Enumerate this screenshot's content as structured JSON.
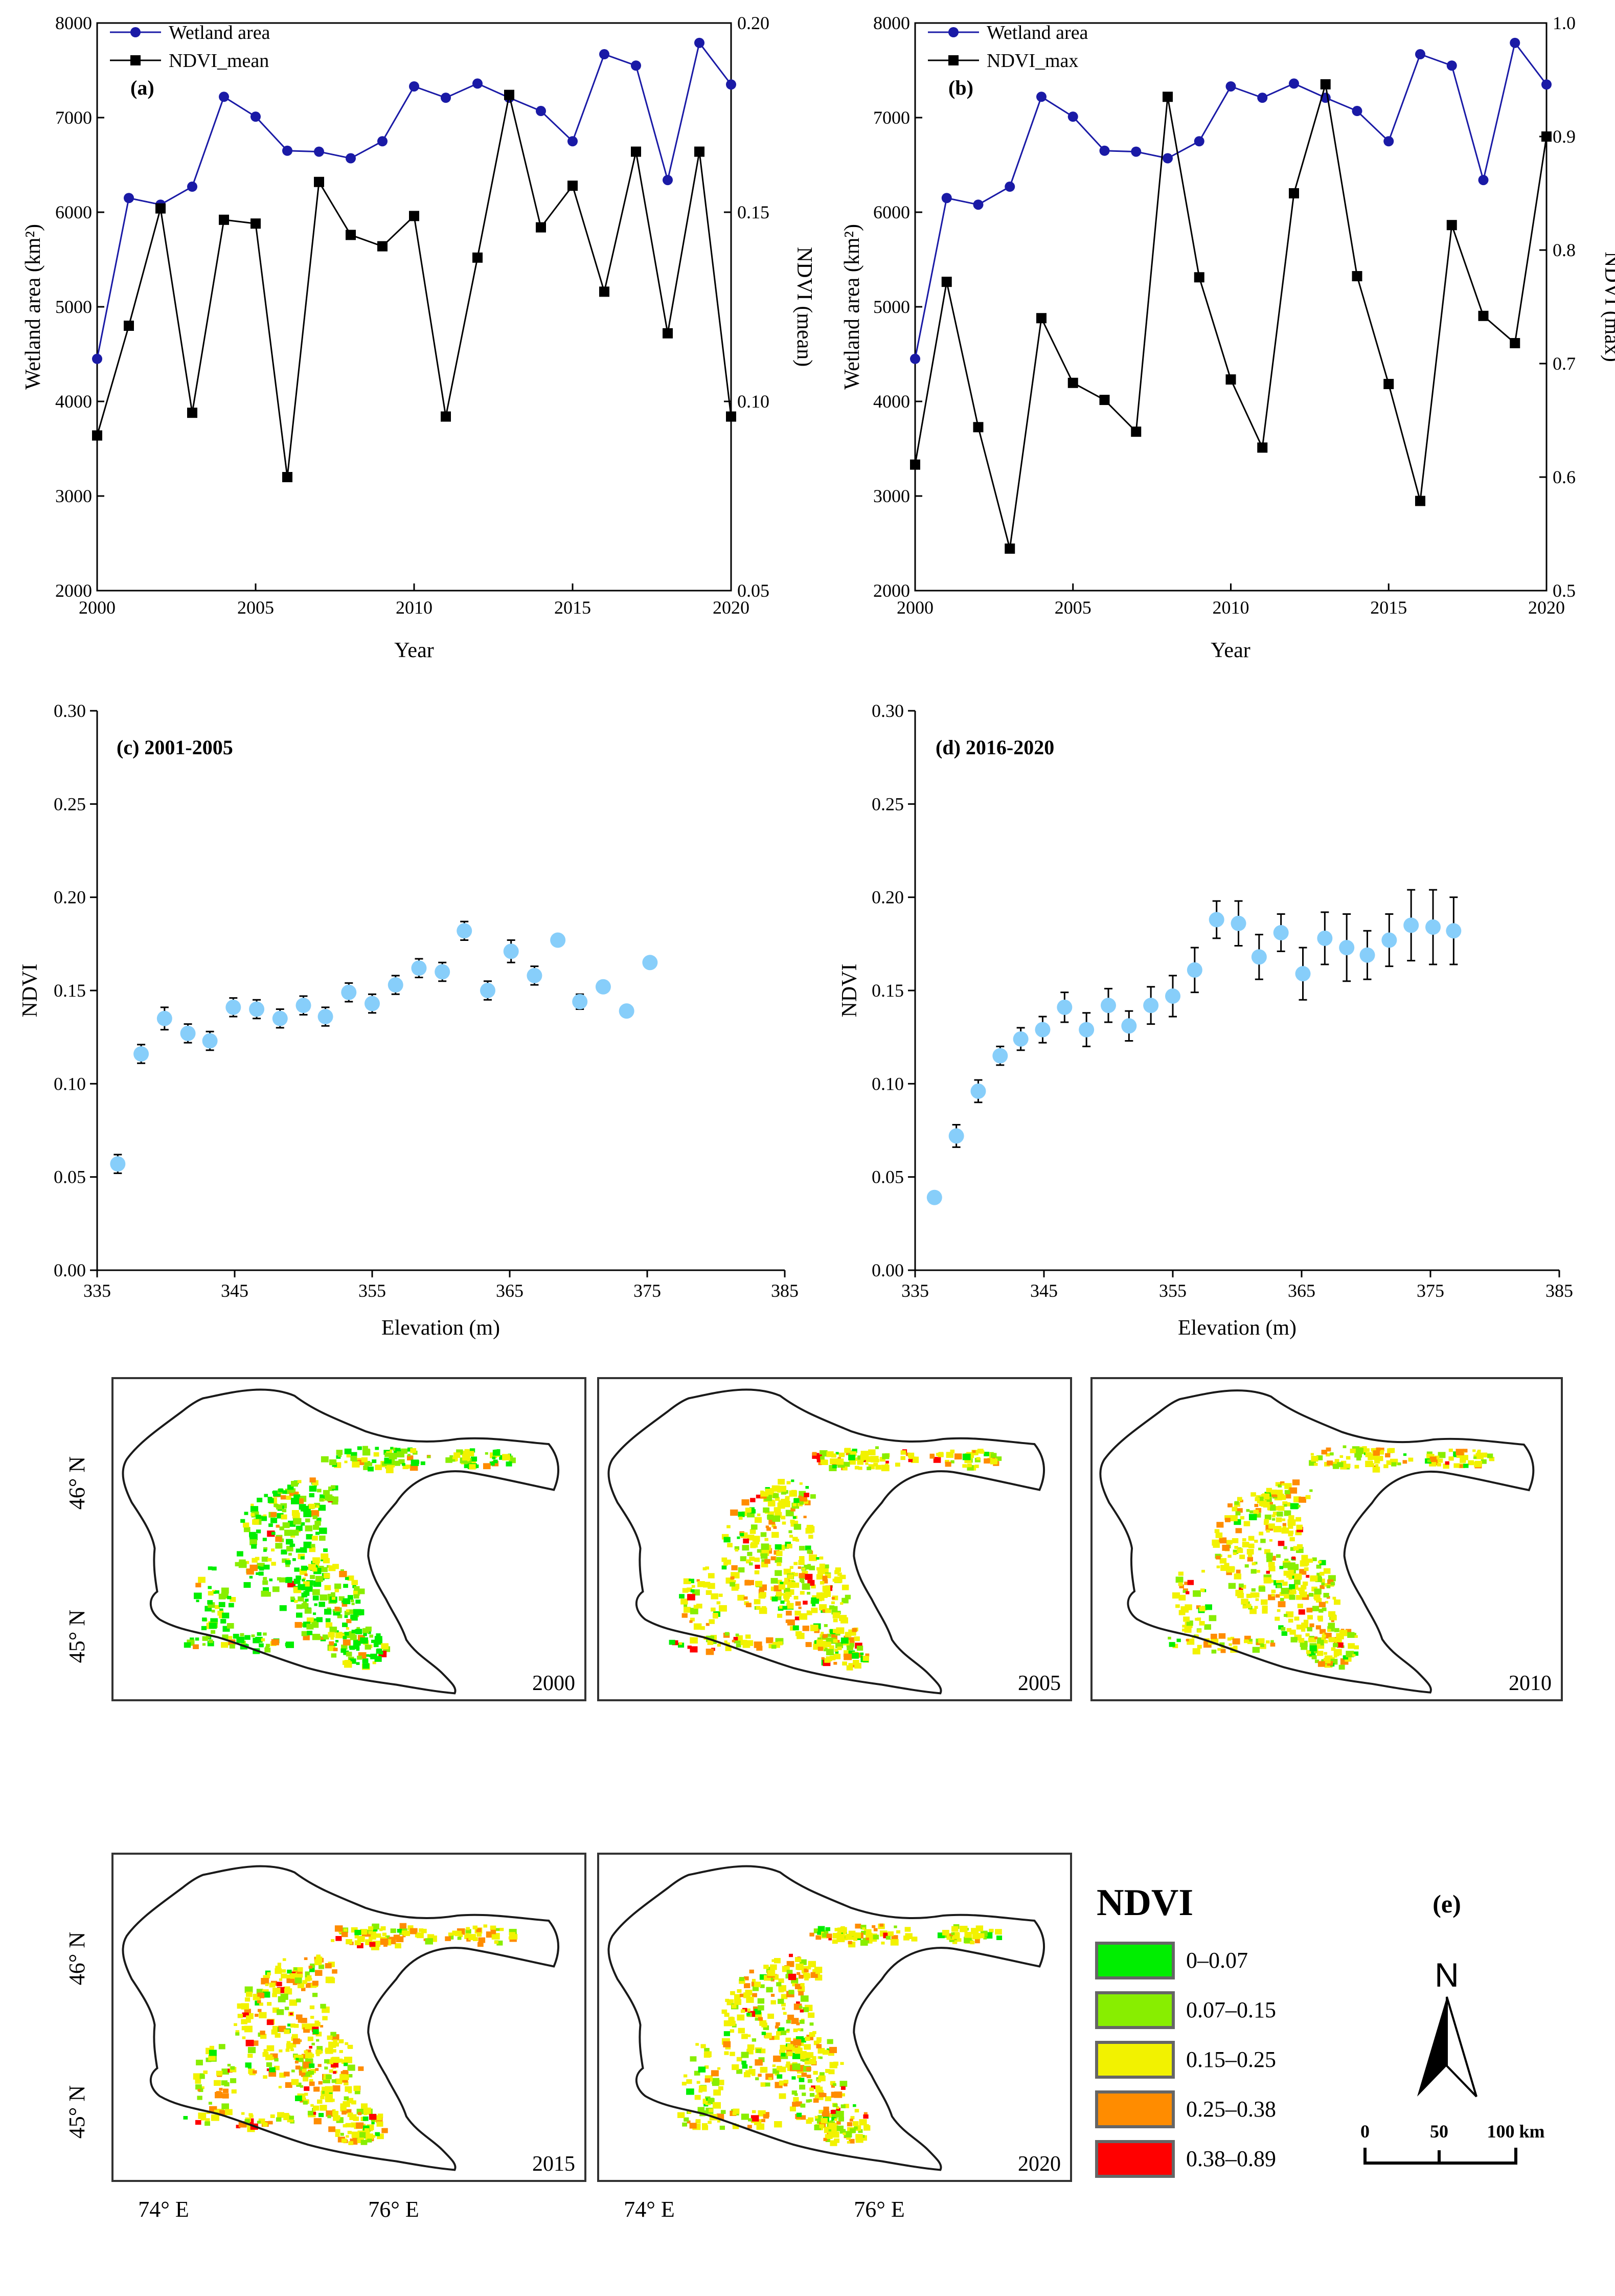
{
  "colors": {
    "wetland": "#1a1aa6",
    "ndvi": "#000000",
    "point": "#87cefa",
    "error": "#000000",
    "class_colors": [
      "#00ee00",
      "#88ee00",
      "#f2f200",
      "#ff8c00",
      "#ff0000"
    ]
  },
  "chart_data": [
    {
      "panel": "a",
      "type": "line",
      "label": "(a)",
      "xlabel": "Year",
      "ylabel_left": "Wetland area (km²)",
      "ylabel_right": "NDVI (mean)",
      "x": [
        2000,
        2001,
        2002,
        2003,
        2004,
        2005,
        2006,
        2007,
        2008,
        2009,
        2010,
        2011,
        2012,
        2013,
        2014,
        2015,
        2016,
        2017,
        2018,
        2019,
        2020
      ],
      "xlim": [
        2000,
        2020
      ],
      "xticks": [
        2000,
        2005,
        2010,
        2015,
        2020
      ],
      "ylim_left": [
        2000,
        8000
      ],
      "yticks_left": [
        2000,
        3000,
        4000,
        5000,
        6000,
        7000,
        8000
      ],
      "ylim_right": [
        0.05,
        0.2
      ],
      "yticks_right": [
        "0.05",
        "0.10",
        "0.15",
        "0.20"
      ],
      "series": [
        {
          "name": "Wetland area",
          "axis": "left",
          "marker": "circle",
          "values": [
            4450,
            6150,
            6080,
            6270,
            7220,
            7010,
            6650,
            6640,
            6570,
            6750,
            7330,
            7210,
            7360,
            7210,
            7070,
            6750,
            7670,
            7550,
            6340,
            7790,
            7350
          ]
        },
        {
          "name": "NDVI_mean",
          "axis": "right",
          "marker": "square",
          "values": [
            0.091,
            0.12,
            0.151,
            0.097,
            0.148,
            0.147,
            0.08,
            0.158,
            0.144,
            0.141,
            0.149,
            0.096,
            0.138,
            0.181,
            0.146,
            0.157,
            0.129,
            0.166,
            0.118,
            0.166,
            0.096
          ]
        }
      ]
    },
    {
      "panel": "b",
      "type": "line",
      "label": "(b)",
      "xlabel": "Year",
      "ylabel_left": "Wetland area (km²)",
      "ylabel_right": "NDVI (max)",
      "x": [
        2000,
        2001,
        2002,
        2003,
        2004,
        2005,
        2006,
        2007,
        2008,
        2009,
        2010,
        2011,
        2012,
        2013,
        2014,
        2015,
        2016,
        2017,
        2018,
        2019,
        2020
      ],
      "xlim": [
        2000,
        2020
      ],
      "xticks": [
        2000,
        2005,
        2010,
        2015,
        2020
      ],
      "ylim_left": [
        2000,
        8000
      ],
      "yticks_left": [
        2000,
        3000,
        4000,
        5000,
        6000,
        7000,
        8000
      ],
      "ylim_right": [
        0.5,
        1.0
      ],
      "yticks_right": [
        "0.5",
        "0.6",
        "0.7",
        "0.8",
        "0.9",
        "1.0"
      ],
      "series": [
        {
          "name": "Wetland area",
          "axis": "left",
          "marker": "circle",
          "values": [
            4450,
            6150,
            6080,
            6270,
            7220,
            7010,
            6650,
            6640,
            6570,
            6750,
            7330,
            7210,
            7360,
            7210,
            7070,
            6750,
            7670,
            7550,
            6340,
            7790,
            7350
          ]
        },
        {
          "name": "NDVI_max",
          "axis": "right",
          "marker": "square",
          "values": [
            0.611,
            0.772,
            0.644,
            0.537,
            0.74,
            0.683,
            0.668,
            0.64,
            0.935,
            0.776,
            0.686,
            0.626,
            0.85,
            0.946,
            0.777,
            0.682,
            0.579,
            0.822,
            0.742,
            0.718,
            0.9
          ]
        }
      ]
    },
    {
      "panel": "c",
      "type": "scatter",
      "label": "(c) 2001-2005",
      "xlabel": "Elevation (m)",
      "ylabel": "NDVI",
      "xlim": [
        335,
        385
      ],
      "xticks": [
        335,
        345,
        355,
        365,
        375,
        385
      ],
      "ylim": [
        0,
        0.3
      ],
      "yticks": [
        "0.00",
        "0.05",
        "0.10",
        "0.15",
        "0.20",
        "0.25",
        "0.30"
      ],
      "x": [
        336.5,
        338.2,
        339.9,
        341.6,
        343.2,
        344.9,
        346.6,
        348.3,
        350.0,
        351.6,
        353.3,
        355.0,
        356.7,
        358.4,
        360.1,
        361.7,
        363.4,
        365.1,
        366.8,
        368.5,
        370.1,
        371.8,
        373.5,
        375.2
      ],
      "y": [
        0.057,
        0.116,
        0.135,
        0.127,
        0.123,
        0.141,
        0.14,
        0.135,
        0.142,
        0.136,
        0.149,
        0.143,
        0.153,
        0.162,
        0.16,
        0.182,
        0.15,
        0.171,
        0.158,
        0.177,
        0.144,
        0.152,
        0.139,
        0.165
      ],
      "err": [
        0.005,
        0.005,
        0.006,
        0.005,
        0.005,
        0.005,
        0.005,
        0.005,
        0.005,
        0.005,
        0.005,
        0.005,
        0.005,
        0.005,
        0.005,
        0.005,
        0.005,
        0.006,
        0.005,
        0.0,
        0.004,
        0.0,
        0.0,
        0.0
      ]
    },
    {
      "panel": "d",
      "type": "scatter",
      "label": "(d) 2016-2020",
      "xlabel": "Elevation (m)",
      "ylabel": "NDVI",
      "xlim": [
        335,
        385
      ],
      "xticks": [
        335,
        345,
        355,
        365,
        375,
        385
      ],
      "ylim": [
        0,
        0.3
      ],
      "yticks": [
        "0.00",
        "0.05",
        "0.10",
        "0.15",
        "0.20",
        "0.25",
        "0.30"
      ],
      "x": [
        336.5,
        338.2,
        339.9,
        341.6,
        343.2,
        344.9,
        346.6,
        348.3,
        350.0,
        351.6,
        353.3,
        355.0,
        356.7,
        358.4,
        360.1,
        361.7,
        363.4,
        365.1,
        366.8,
        368.5,
        370.1,
        371.8,
        373.5,
        375.2,
        376.8
      ],
      "y": [
        0.039,
        0.072,
        0.096,
        0.115,
        0.124,
        0.129,
        0.141,
        0.129,
        0.142,
        0.131,
        0.142,
        0.147,
        0.161,
        0.188,
        0.186,
        0.168,
        0.181,
        0.159,
        0.178,
        0.173,
        0.169,
        0.177,
        0.185,
        0.184,
        0.182
      ],
      "err": [
        0.0,
        0.006,
        0.006,
        0.005,
        0.006,
        0.007,
        0.008,
        0.009,
        0.009,
        0.008,
        0.01,
        0.011,
        0.012,
        0.01,
        0.012,
        0.012,
        0.01,
        0.014,
        0.014,
        0.018,
        0.013,
        0.014,
        0.019,
        0.02,
        0.018
      ]
    }
  ],
  "maps": {
    "years": [
      "2000",
      "2005",
      "2010",
      "2015",
      "2020"
    ],
    "lat_labels": [
      "46° N",
      "45° N"
    ],
    "lon_labels": [
      "74° E",
      "76° E"
    ],
    "legend_title": "NDVI",
    "classes": [
      "0–0.07",
      "0.07–0.15",
      "0.15–0.25",
      "0.25–0.38",
      "0.38–0.89"
    ],
    "panel_label": "(e)",
    "north": "N",
    "scale_labels": [
      "0",
      "50",
      "100 km"
    ]
  }
}
